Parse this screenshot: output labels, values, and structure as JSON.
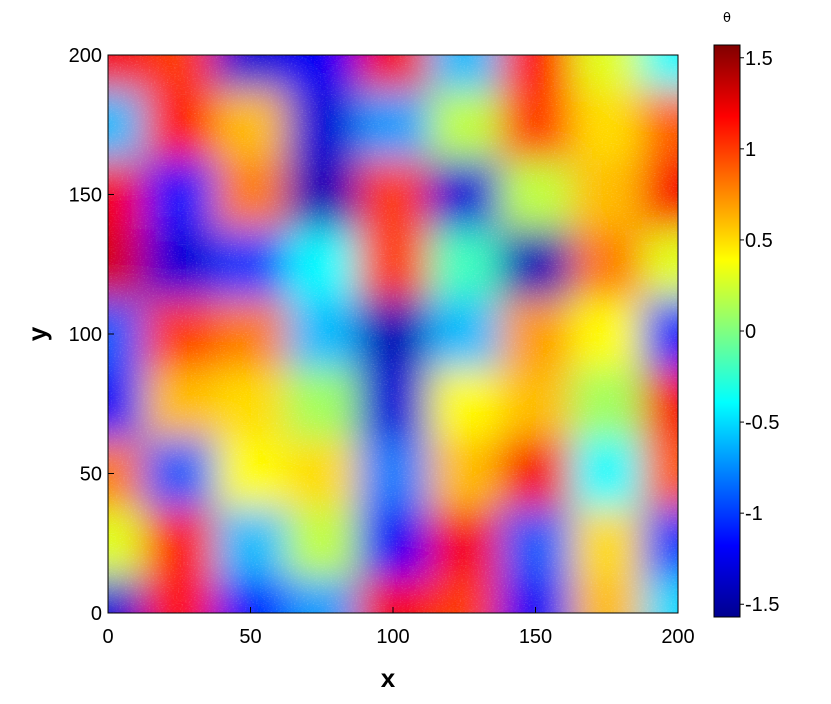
{
  "chart_data": {
    "type": "heatmap",
    "title": "",
    "xlabel": "x",
    "ylabel": "y",
    "xlim": [
      0,
      200
    ],
    "ylim": [
      0,
      200
    ],
    "x_ticks": [
      0,
      50,
      100,
      150,
      200
    ],
    "y_ticks": [
      0,
      50,
      100,
      150,
      200
    ],
    "x_tick_labels": [
      "0",
      "50",
      "100",
      "150",
      "200"
    ],
    "y_tick_labels": [
      "0",
      "50",
      "100",
      "150",
      "200"
    ],
    "colorbar": {
      "label": "θ",
      "range": [
        -1.57,
        1.57
      ],
      "ticks": [
        1.5,
        1,
        0.5,
        0,
        -0.5,
        -1,
        -1.5
      ],
      "tick_labels": [
        "1.5",
        "1",
        "0.5",
        "0",
        "-0.5",
        "-1",
        "-1.5"
      ],
      "colormap": "jet"
    },
    "grid_x": [
      0,
      25,
      50,
      75,
      100,
      125,
      150,
      175,
      200
    ],
    "grid_y": [
      200,
      175,
      150,
      125,
      100,
      75,
      50,
      25,
      0
    ],
    "grid_values": [
      [
        1.2,
        1.0,
        -1.3,
        -1.2,
        1.2,
        -0.6,
        1.1,
        0.3,
        -0.4
      ],
      [
        -0.6,
        1.1,
        0.6,
        -1.3,
        -0.7,
        0.2,
        1.0,
        0.5,
        0.9
      ],
      [
        1.2,
        -1.1,
        0.8,
        -1.4,
        1.0,
        -1.3,
        0.2,
        0.6,
        1.2
      ],
      [
        1.3,
        -1.3,
        -1.0,
        -0.4,
        1.0,
        -0.2,
        -1.4,
        0.8,
        0.3
      ],
      [
        -0.9,
        1.0,
        0.8,
        -0.6,
        -1.4,
        -0.6,
        0.7,
        0.4,
        -1.1
      ],
      [
        -1.2,
        0.6,
        0.5,
        0.1,
        -1.3,
        0.4,
        0.6,
        0.1,
        1.2
      ],
      [
        0.8,
        -0.9,
        0.4,
        0.5,
        -0.8,
        0.6,
        1.2,
        -0.4,
        0.9
      ],
      [
        0.3,
        1.1,
        -0.6,
        0.2,
        -1.2,
        1.2,
        -0.9,
        0.5,
        -1.0
      ],
      [
        -1.3,
        1.1,
        -1.1,
        -0.7,
        1.2,
        1.0,
        -1.2,
        0.6,
        -0.5
      ]
    ]
  }
}
